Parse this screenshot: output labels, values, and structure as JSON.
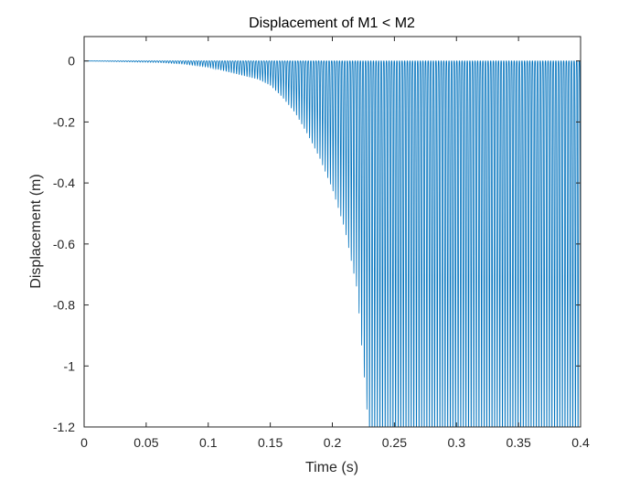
{
  "chart_data": {
    "type": "line",
    "title": "Displacement of M1 < M2",
    "xlabel": "Time (s)",
    "ylabel": "Displacement (m)",
    "xlim": [
      0,
      0.4
    ],
    "ylim": [
      -1.2,
      0.08
    ],
    "xticks": [
      0,
      0.05,
      0.1,
      0.15,
      0.2,
      0.25,
      0.3,
      0.35,
      0.4
    ],
    "xtick_labels": [
      "0",
      "0.05",
      "0.1",
      "0.15",
      "0.2",
      "0.25",
      "0.3",
      "0.35",
      "0.4"
    ],
    "yticks": [
      0,
      -0.2,
      -0.4,
      -0.6,
      -0.8,
      -1,
      -1.2
    ],
    "ytick_labels": [
      "0",
      "-0.2",
      "-0.4",
      "-0.6",
      "-0.8",
      "-1",
      "-1.2"
    ],
    "grid": false,
    "line_color": "#0072BD",
    "series": [
      {
        "description": "Displacement oscillates as downward spikes from ~0 m; spike depth grows from ~0 near t=0.06 s to beyond -1.2 m after ~0.23 s, then stays clipped at the axis bottom through t=0.4 s",
        "x": [
          0,
          0.06,
          0.08,
          0.1,
          0.12,
          0.14,
          0.15,
          0.16,
          0.17,
          0.18,
          0.19,
          0.2,
          0.21,
          0.22,
          0.23,
          0.25,
          0.3,
          0.35,
          0.4
        ],
        "y": [
          0,
          -0.005,
          -0.01,
          -0.02,
          -0.04,
          -0.06,
          -0.08,
          -0.12,
          -0.17,
          -0.24,
          -0.32,
          -0.42,
          -0.55,
          -0.75,
          -1.25,
          -1.3,
          -1.3,
          -1.3,
          -1.3
        ]
      }
    ]
  }
}
